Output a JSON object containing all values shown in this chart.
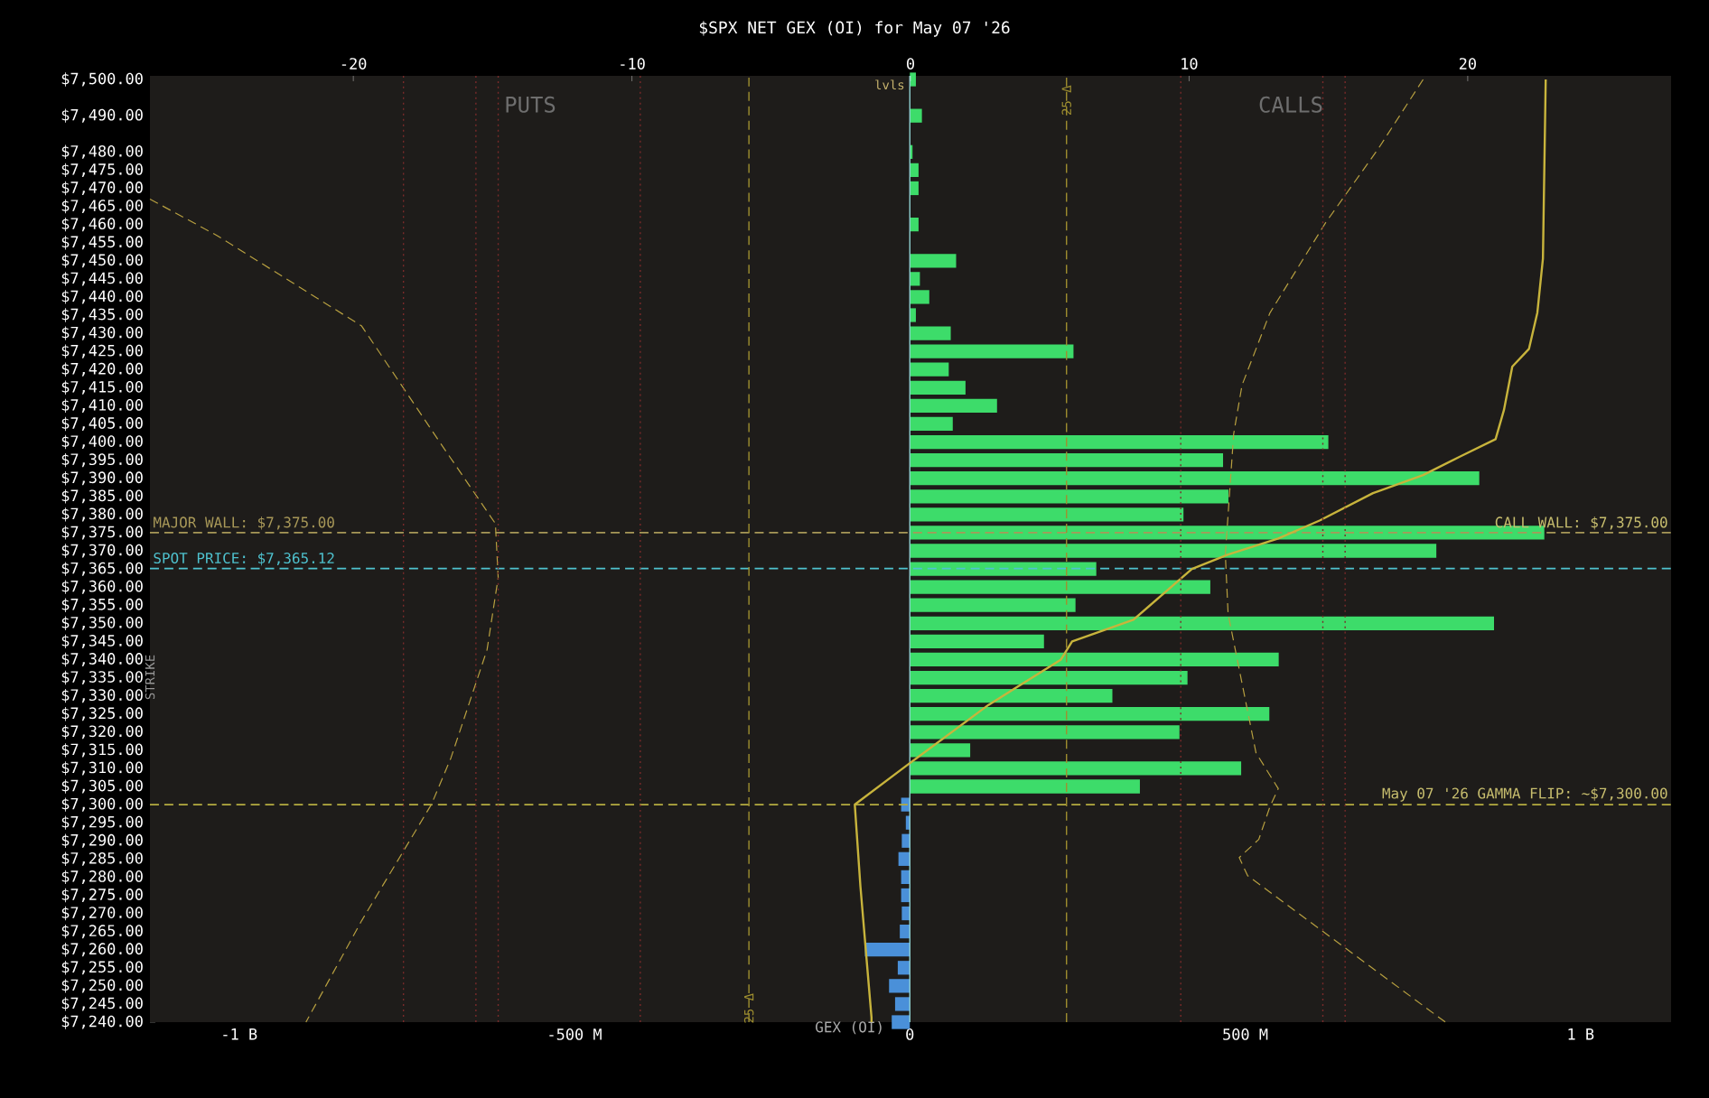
{
  "chart_data": {
    "type": "bar",
    "orientation": "horizontal",
    "title": "$SPX NET GEX (OI) for May 07 '26",
    "xlabel": "GEX (OI)",
    "ylabel": "STRIKE",
    "x2label": "lvls",
    "xlim": [
      -1133000000,
      1135000000
    ],
    "xticks": [
      {
        "value": -1000000000,
        "label": "-1 B"
      },
      {
        "value": -500000000,
        "label": "-500 M"
      },
      0,
      {
        "value": 500000000,
        "label": "500 M"
      },
      {
        "value": 1000000000,
        "label": "1 B"
      }
    ],
    "x2lim": [
      -27.3,
      27.3
    ],
    "x2ticks": [
      -20,
      -10,
      0,
      10,
      20
    ],
    "ylim": [
      7240,
      7501
    ],
    "yticks": [
      {
        "value": 7500,
        "label": "$7,500.00"
      },
      {
        "value": 7490,
        "label": "$7,490.00"
      },
      {
        "value": 7480,
        "label": "$7,480.00"
      },
      {
        "value": 7475,
        "label": "$7,475.00"
      },
      {
        "value": 7470,
        "label": "$7,470.00"
      },
      {
        "value": 7465,
        "label": "$7,465.00"
      },
      {
        "value": 7460,
        "label": "$7,460.00"
      },
      {
        "value": 7455,
        "label": "$7,455.00"
      },
      {
        "value": 7450,
        "label": "$7,450.00"
      },
      {
        "value": 7445,
        "label": "$7,445.00"
      },
      {
        "value": 7440,
        "label": "$7,440.00"
      },
      {
        "value": 7435,
        "label": "$7,435.00"
      },
      {
        "value": 7430,
        "label": "$7,430.00"
      },
      {
        "value": 7425,
        "label": "$7,425.00"
      },
      {
        "value": 7420,
        "label": "$7,420.00"
      },
      {
        "value": 7415,
        "label": "$7,415.00"
      },
      {
        "value": 7410,
        "label": "$7,410.00"
      },
      {
        "value": 7405,
        "label": "$7,405.00"
      },
      {
        "value": 7400,
        "label": "$7,400.00"
      },
      {
        "value": 7395,
        "label": "$7,395.00"
      },
      {
        "value": 7390,
        "label": "$7,390.00"
      },
      {
        "value": 7385,
        "label": "$7,385.00"
      },
      {
        "value": 7380,
        "label": "$7,380.00"
      },
      {
        "value": 7375,
        "label": "$7,375.00"
      },
      {
        "value": 7370,
        "label": "$7,370.00"
      },
      {
        "value": 7365,
        "label": "$7,365.00"
      },
      {
        "value": 7360,
        "label": "$7,360.00"
      },
      {
        "value": 7355,
        "label": "$7,355.00"
      },
      {
        "value": 7350,
        "label": "$7,350.00"
      },
      {
        "value": 7345,
        "label": "$7,345.00"
      },
      {
        "value": 7340,
        "label": "$7,340.00"
      },
      {
        "value": 7335,
        "label": "$7,335.00"
      },
      {
        "value": 7330,
        "label": "$7,330.00"
      },
      {
        "value": 7325,
        "label": "$7,325.00"
      },
      {
        "value": 7320,
        "label": "$7,320.00"
      },
      {
        "value": 7315,
        "label": "$7,315.00"
      },
      {
        "value": 7310,
        "label": "$7,310.00"
      },
      {
        "value": 7305,
        "label": "$7,305.00"
      },
      {
        "value": 7300,
        "label": "$7,300.00"
      },
      {
        "value": 7295,
        "label": "$7,295.00"
      },
      {
        "value": 7290,
        "label": "$7,290.00"
      },
      {
        "value": 7285,
        "label": "$7,285.00"
      },
      {
        "value": 7280,
        "label": "$7,280.00"
      },
      {
        "value": 7275,
        "label": "$7,275.00"
      },
      {
        "value": 7270,
        "label": "$7,270.00"
      },
      {
        "value": 7265,
        "label": "$7,265.00"
      },
      {
        "value": 7260,
        "label": "$7,260.00"
      },
      {
        "value": 7255,
        "label": "$7,255.00"
      },
      {
        "value": 7250,
        "label": "$7,250.00"
      },
      {
        "value": 7245,
        "label": "$7,245.00"
      },
      {
        "value": 7240,
        "label": "$7,240.00"
      }
    ],
    "series": [
      {
        "color": "#3ddc6a",
        "x": [
          7500,
          7495,
          7490,
          7485,
          7480,
          7475,
          7470,
          7465,
          7460,
          7455,
          7450,
          7445,
          7440,
          7435,
          7430,
          7425,
          7420,
          7415,
          7410,
          7405,
          7400,
          7395,
          7390,
          7385,
          7380,
          7375,
          7370,
          7365,
          7360,
          7355,
          7350,
          7345,
          7340,
          7335,
          7330,
          7325,
          7320,
          7315,
          7310,
          7305
        ],
        "values": [
          9000000,
          null,
          18000000,
          null,
          4000000,
          13000000,
          13000000,
          null,
          13000000,
          null,
          69000000,
          15000000,
          29000000,
          9000000,
          61000000,
          244000000,
          58000000,
          83000000,
          130000000,
          64000000,
          624000000,
          467000000,
          849000000,
          475000000,
          408000000,
          946000000,
          785000000,
          278000000,
          448000000,
          247000000,
          871000000,
          200000000,
          550000000,
          414000000,
          302000000,
          536000000,
          402000000,
          90000000,
          494000000,
          343000000
        ]
      },
      {
        "color": "#4a90d9",
        "x": [
          7300,
          7295,
          7290,
          7285,
          7280,
          7275,
          7270,
          7265,
          7260,
          7255,
          7250,
          7245,
          7240
        ],
        "values": [
          -13000000,
          -6000000,
          -12000000,
          -17000000,
          -13000000,
          -13000000,
          -12000000,
          -15000000,
          -67000000,
          -18000000,
          -31000000,
          -22000000,
          -27000000
        ]
      },
      {
        "type": "line",
        "axis": "x2",
        "color": "#c8b43c",
        "line_style": "solid",
        "x": [
          7500,
          7450.6,
          7435.7,
          7425.7,
          7420.8,
          7408.8,
          7400.8,
          7395.9,
          7390.9,
          7385.9,
          7378.4,
          7373.4,
          7369,
          7365,
          7351,
          7345,
          7340,
          7327.5,
          7311,
          7300,
          7277.6,
          7241.3,
          7240
        ],
        "values": [
          22.8,
          22.7,
          22.5,
          22.2,
          21.6,
          21.3,
          21.0,
          19.7,
          18.4,
          16.6,
          14.7,
          13.2,
          11.4,
          10.1,
          8.0,
          5.8,
          5.4,
          2.8,
          -0.1,
          -2.0,
          -1.8,
          -1.4,
          -1.4
        ]
      },
      {
        "type": "line",
        "axis": "x2",
        "color": "#b8a040",
        "line_style": "dashed",
        "x": [
          7500,
          7481,
          7460.5,
          7435.6,
          7415.7,
          7402.3,
          7369,
          7352.6,
          7314.3,
          7304.4,
          7299.4,
          7290.4,
          7285.4,
          7280.4,
          7240
        ],
        "values": [
          18.4,
          16.8,
          14.9,
          12.9,
          11.9,
          11.6,
          11.3,
          11.4,
          12.4,
          13.2,
          12.9,
          12.5,
          11.8,
          12.1,
          19.2
        ]
      },
      {
        "type": "line",
        "axis": "x2",
        "color": "#b8a040",
        "line_style": "dashed",
        "x": [
          7467,
          7457,
          7432,
          7400,
          7377.5,
          7362.6,
          7342.7,
          7312.8,
          7300,
          7268,
          7240
        ],
        "values": [
          -27.3,
          -24.9,
          -19.7,
          -16.9,
          -14.9,
          -14.8,
          -15.2,
          -16.5,
          -17.2,
          -19.7,
          -21.7
        ]
      }
    ],
    "ref_lines": [
      {
        "axis": "y",
        "value": 7375,
        "label": "MAJOR WALL: $7,375.00",
        "color": "#a89858",
        "line_style": "dashed"
      },
      {
        "axis": "y",
        "value": 7365.12,
        "label": "SPOT PRICE: $7,365.12",
        "color": "#4fc3d0",
        "line_style": "dashed"
      },
      {
        "axis": "y",
        "value": 7300,
        "color": "#b5ac40",
        "line_style": "dashed"
      },
      {
        "axis": "x",
        "value": 0,
        "color": "#8fd0d0",
        "line_style": "solid"
      },
      {
        "axis": "x2",
        "value": 5.6,
        "label": "25 Δ",
        "color": "#a09030",
        "line_style": "dashed"
      },
      {
        "axis": "x2",
        "value": -5.8,
        "label": "25 Δ",
        "color": "#a09030",
        "line_style": "dashed"
      },
      {
        "axis": "x2",
        "value": -18.2,
        "color": "#7a2a2a",
        "line_style": "dotted"
      },
      {
        "axis": "x2",
        "value": -15.6,
        "color": "#7a2a2a",
        "line_style": "dotted"
      },
      {
        "axis": "x2",
        "value": -14.8,
        "color": "#7a2a2a",
        "line_style": "dotted"
      },
      {
        "axis": "x2",
        "value": -9.7,
        "color": "#7a2a2a",
        "line_style": "dotted"
      },
      {
        "axis": "x2",
        "value": 9.7,
        "color": "#7a2a2a",
        "line_style": "dotted"
      },
      {
        "axis": "x2",
        "value": 14.8,
        "color": "#7a2a2a",
        "line_style": "dotted"
      },
      {
        "axis": "x2",
        "value": 15.6,
        "color": "#7a2a2a",
        "line_style": "dotted"
      }
    ],
    "annotations": [
      "PUTS",
      "CALLS",
      {
        "text": "CALL WALL: $7,375.00",
        "x": 1135000000,
        "y": 7375
      },
      {
        "text": "May 07 '26 GAMMA FLIP: ~$7,300.00",
        "x": 1135000000,
        "y": 7300
      }
    ]
  }
}
